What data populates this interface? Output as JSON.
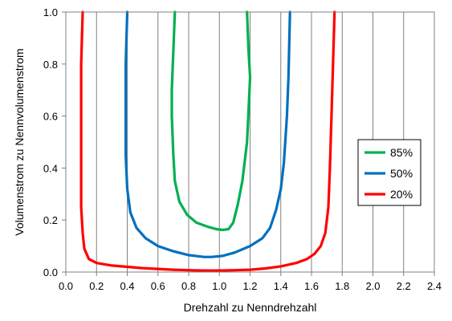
{
  "chart_data": {
    "type": "line",
    "xlabel": "Drehzahl zu Nenndrehzahl",
    "ylabel": "Volumenstrom zu Nennvolumenstrom",
    "xlim": [
      0.0,
      2.4
    ],
    "ylim": [
      0.0,
      1.0
    ],
    "xticks": [
      "0.0",
      "0.2",
      "0.4",
      "0.6",
      "0.8",
      "1.0",
      "1.2",
      "1.4",
      "1.6",
      "1.8",
      "2.0",
      "2.2",
      "2.4"
    ],
    "yticks": [
      "0.0",
      "0.2",
      "0.4",
      "0.6",
      "0.8",
      "1.0"
    ],
    "grid": "vertical",
    "legend_position": "right",
    "series": [
      {
        "name": "85%",
        "color": "#00b050",
        "points": [
          [
            0.71,
            1.0
          ],
          [
            0.7,
            0.85
          ],
          [
            0.69,
            0.7
          ],
          [
            0.69,
            0.6
          ],
          [
            0.7,
            0.45
          ],
          [
            0.71,
            0.35
          ],
          [
            0.74,
            0.27
          ],
          [
            0.79,
            0.22
          ],
          [
            0.85,
            0.19
          ],
          [
            0.92,
            0.175
          ],
          [
            0.98,
            0.165
          ],
          [
            1.02,
            0.162
          ],
          [
            1.06,
            0.165
          ],
          [
            1.09,
            0.19
          ],
          [
            1.12,
            0.26
          ],
          [
            1.15,
            0.35
          ],
          [
            1.18,
            0.5
          ],
          [
            1.19,
            0.62
          ],
          [
            1.2,
            0.75
          ],
          [
            1.19,
            0.85
          ],
          [
            1.18,
            1.0
          ]
        ]
      },
      {
        "name": "50%",
        "color": "#0070c0",
        "points": [
          [
            0.4,
            1.0
          ],
          [
            0.39,
            0.8
          ],
          [
            0.39,
            0.6
          ],
          [
            0.39,
            0.45
          ],
          [
            0.4,
            0.32
          ],
          [
            0.42,
            0.23
          ],
          [
            0.46,
            0.17
          ],
          [
            0.52,
            0.13
          ],
          [
            0.6,
            0.1
          ],
          [
            0.7,
            0.08
          ],
          [
            0.8,
            0.065
          ],
          [
            0.9,
            0.058
          ],
          [
            0.95,
            0.058
          ],
          [
            1.02,
            0.062
          ],
          [
            1.1,
            0.075
          ],
          [
            1.2,
            0.1
          ],
          [
            1.28,
            0.13
          ],
          [
            1.33,
            0.17
          ],
          [
            1.37,
            0.24
          ],
          [
            1.4,
            0.32
          ],
          [
            1.42,
            0.42
          ],
          [
            1.44,
            0.6
          ],
          [
            1.45,
            0.75
          ],
          [
            1.46,
            1.0
          ]
        ]
      },
      {
        "name": "20%",
        "color": "#ff0000",
        "points": [
          [
            0.11,
            1.0
          ],
          [
            0.1,
            0.8
          ],
          [
            0.1,
            0.6
          ],
          [
            0.1,
            0.4
          ],
          [
            0.1,
            0.25
          ],
          [
            0.11,
            0.15
          ],
          [
            0.12,
            0.09
          ],
          [
            0.15,
            0.05
          ],
          [
            0.2,
            0.035
          ],
          [
            0.3,
            0.025
          ],
          [
            0.4,
            0.02
          ],
          [
            0.5,
            0.015
          ],
          [
            0.6,
            0.012
          ],
          [
            0.7,
            0.009
          ],
          [
            0.8,
            0.007
          ],
          [
            0.9,
            0.006
          ],
          [
            1.0,
            0.006
          ],
          [
            1.1,
            0.007
          ],
          [
            1.2,
            0.009
          ],
          [
            1.3,
            0.014
          ],
          [
            1.4,
            0.022
          ],
          [
            1.5,
            0.035
          ],
          [
            1.57,
            0.05
          ],
          [
            1.62,
            0.07
          ],
          [
            1.66,
            0.1
          ],
          [
            1.69,
            0.15
          ],
          [
            1.71,
            0.25
          ],
          [
            1.72,
            0.4
          ],
          [
            1.73,
            0.6
          ],
          [
            1.74,
            0.8
          ],
          [
            1.75,
            1.0
          ]
        ]
      }
    ]
  }
}
